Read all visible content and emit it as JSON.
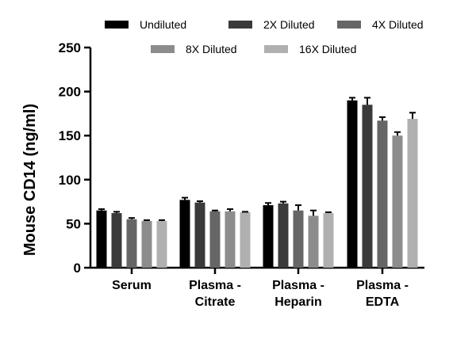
{
  "chart_data": {
    "type": "bar",
    "title": "",
    "xlabel": "",
    "ylabel": "Mouse CD14 (ng/ml)",
    "ylim": [
      0,
      250
    ],
    "yticks": [
      0,
      50,
      100,
      150,
      200,
      250
    ],
    "grid": false,
    "legend_position": "top",
    "categories": [
      [
        "Serum"
      ],
      [
        "Plasma -",
        "Citrate"
      ],
      [
        "Plasma -",
        "Heparin"
      ],
      [
        "Plasma -",
        "EDTA"
      ]
    ],
    "series": [
      {
        "name": "Undiluted",
        "color": "#000000",
        "values": [
          65,
          77,
          71,
          190
        ],
        "errors": [
          1.5,
          2.5,
          2.5,
          3
        ]
      },
      {
        "name": "2X Diluted",
        "color": "#3a3a3a",
        "values": [
          62,
          74,
          73,
          185
        ],
        "errors": [
          1.5,
          1.5,
          2,
          8
        ]
      },
      {
        "name": "4X Diluted",
        "color": "#666666",
        "values": [
          55,
          64,
          65,
          167
        ],
        "errors": [
          1.5,
          1,
          6,
          4
        ]
      },
      {
        "name": "8X Diluted",
        "color": "#8c8c8c",
        "values": [
          53,
          64,
          59,
          150
        ],
        "errors": [
          1,
          2.5,
          6,
          4
        ]
      },
      {
        "name": "16X Diluted",
        "color": "#b0b0b0",
        "values": [
          53,
          63,
          62,
          169
        ],
        "errors": [
          1,
          0.5,
          1,
          7
        ]
      }
    ]
  }
}
